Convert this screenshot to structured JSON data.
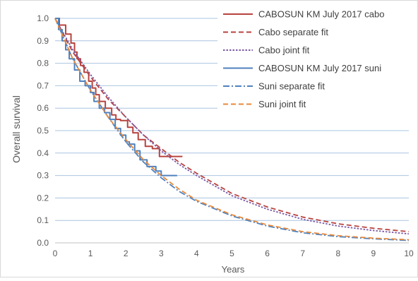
{
  "chart_data": {
    "type": "line",
    "xlabel": "Years",
    "ylabel": "Overall survival",
    "xlim": [
      0,
      10
    ],
    "ylim": [
      0,
      1.0
    ],
    "x_ticks": [
      "0",
      "1",
      "2",
      "3",
      "4",
      "5",
      "6",
      "7",
      "8",
      "9",
      "10"
    ],
    "y_ticks": [
      "0.0",
      "0.1",
      "0.2",
      "0.3",
      "0.4",
      "0.5",
      "0.6",
      "0.7",
      "0.8",
      "0.9",
      "1.0"
    ],
    "grid": "horizontal",
    "legend_position": "top-right",
    "series": [
      {
        "name": "CABOSUN KM July 2017 cabo",
        "style": "solid",
        "color": "#B8433F",
        "kind": "step",
        "x": [
          0,
          0.12,
          0.3,
          0.45,
          0.55,
          0.62,
          0.72,
          0.82,
          0.95,
          1.05,
          1.15,
          1.25,
          1.42,
          1.6,
          1.72,
          1.85,
          2.05,
          2.2,
          2.35,
          2.55,
          2.75,
          2.95,
          3.6
        ],
        "y": [
          1.0,
          0.97,
          0.93,
          0.89,
          0.85,
          0.82,
          0.79,
          0.76,
          0.72,
          0.69,
          0.66,
          0.63,
          0.6,
          0.57,
          0.55,
          0.545,
          0.515,
          0.49,
          0.46,
          0.43,
          0.42,
          0.385,
          0.385
        ]
      },
      {
        "name": "Cabo separate fit",
        "style": "dashed",
        "color": "#B8433F",
        "kind": "curve",
        "x": [
          0,
          0.5,
          1,
          1.5,
          2,
          2.5,
          3,
          3.5,
          4,
          5,
          6,
          7,
          8,
          9,
          10
        ],
        "y": [
          1.0,
          0.85,
          0.74,
          0.64,
          0.56,
          0.48,
          0.42,
          0.36,
          0.31,
          0.22,
          0.16,
          0.115,
          0.085,
          0.065,
          0.05
        ]
      },
      {
        "name": "Cabo joint fit",
        "style": "dotted",
        "color": "#7B5BA6",
        "kind": "curve",
        "x": [
          0,
          0.5,
          1,
          1.5,
          2,
          2.5,
          3,
          3.5,
          4,
          5,
          6,
          7,
          8,
          9,
          10
        ],
        "y": [
          1.0,
          0.86,
          0.75,
          0.65,
          0.56,
          0.48,
          0.41,
          0.35,
          0.3,
          0.21,
          0.15,
          0.105,
          0.075,
          0.055,
          0.04
        ]
      },
      {
        "name": "CABOSUN KM July 2017  suni",
        "style": "solid",
        "color": "#4F81BD",
        "kind": "step",
        "x": [
          0,
          0.1,
          0.2,
          0.3,
          0.4,
          0.55,
          0.7,
          0.85,
          1.0,
          1.1,
          1.25,
          1.4,
          1.55,
          1.7,
          1.85,
          2.0,
          2.1,
          2.25,
          2.4,
          2.6,
          2.85,
          3.0,
          3.45
        ],
        "y": [
          1.0,
          0.95,
          0.9,
          0.86,
          0.82,
          0.77,
          0.72,
          0.7,
          0.67,
          0.63,
          0.6,
          0.58,
          0.55,
          0.51,
          0.48,
          0.45,
          0.44,
          0.41,
          0.37,
          0.34,
          0.32,
          0.3,
          0.3
        ]
      },
      {
        "name": "Suni separate fit",
        "style": "dashdot",
        "color": "#4F81BD",
        "kind": "curve",
        "x": [
          0,
          0.5,
          1,
          1.5,
          2,
          2.5,
          3,
          3.5,
          4,
          5,
          6,
          7,
          8,
          9,
          10
        ],
        "y": [
          1.0,
          0.82,
          0.68,
          0.56,
          0.45,
          0.36,
          0.29,
          0.23,
          0.185,
          0.12,
          0.075,
          0.045,
          0.028,
          0.018,
          0.011
        ]
      },
      {
        "name": "Suni joint fit",
        "style": "dashed",
        "color": "#E8893B",
        "kind": "curve",
        "x": [
          0,
          0.5,
          1,
          1.5,
          2,
          2.5,
          3,
          3.5,
          4,
          5,
          6,
          7,
          8,
          9,
          10
        ],
        "y": [
          1.0,
          0.82,
          0.68,
          0.56,
          0.46,
          0.37,
          0.3,
          0.24,
          0.19,
          0.125,
          0.08,
          0.05,
          0.032,
          0.021,
          0.014
        ]
      }
    ]
  }
}
